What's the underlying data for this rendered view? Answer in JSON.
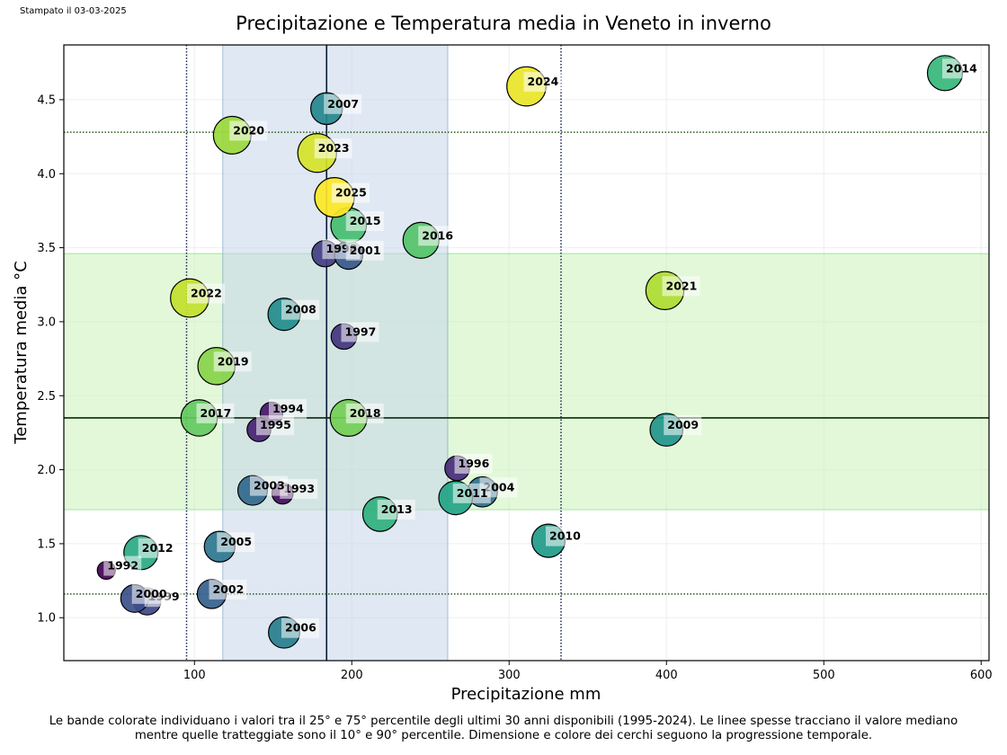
{
  "printed_date": "Stampato il 03-03-2025",
  "caption_lines": [
    "Le bande colorate individuano i valori tra il 25° e 75° percentile degli ultimi 30 anni disponibili (1995-2024). Le linee spesse tracciano il valore mediano",
    "mentre quelle tratteggiate sono il 10° e 90° percentile. Dimensione e colore dei cerchi seguono la progressione temporale."
  ],
  "chart_data": {
    "type": "scatter",
    "title": "Precipitazione e Temperatura media in Veneto in inverno",
    "xlabel": "Precipitazione mm",
    "ylabel": "Temperatura media °C",
    "xlim": [
      17,
      605
    ],
    "ylim": [
      0.71,
      4.87
    ],
    "xticks": [
      100,
      200,
      300,
      400,
      500,
      600
    ],
    "yticks": [
      1.0,
      1.5,
      2.0,
      2.5,
      3.0,
      3.5,
      4.0,
      4.5
    ],
    "grid": true,
    "colormap": "viridis",
    "reference": {
      "precip_band_p25_p75": [
        118,
        261
      ],
      "precip_median": 184,
      "precip_p10": 95,
      "precip_p90": 333,
      "temp_band_p25_p75": [
        1.73,
        3.46
      ],
      "temp_median": 2.35,
      "temp_p10": 1.16,
      "temp_p90": 4.28,
      "precip_band_color": "#c4d6ea",
      "temp_band_color": "#c8f2b4",
      "temp_band_edge": "#6fd66a",
      "precip_band_edge": "#5a8bb8"
    },
    "points": [
      {
        "year": "1992",
        "x": 44,
        "y": 1.32
      },
      {
        "year": "1993",
        "x": 156,
        "y": 1.84
      },
      {
        "year": "1994",
        "x": 149,
        "y": 2.38
      },
      {
        "year": "1995",
        "x": 141,
        "y": 2.27
      },
      {
        "year": "1996",
        "x": 267,
        "y": 2.01
      },
      {
        "year": "1997",
        "x": 195,
        "y": 2.9
      },
      {
        "year": "1998",
        "x": 183,
        "y": 3.46
      },
      {
        "year": "1999",
        "x": 70,
        "y": 1.11
      },
      {
        "year": "2000",
        "x": 62,
        "y": 1.13
      },
      {
        "year": "2001",
        "x": 198,
        "y": 3.45
      },
      {
        "year": "2002",
        "x": 111,
        "y": 1.16
      },
      {
        "year": "2003",
        "x": 137,
        "y": 1.86
      },
      {
        "year": "2004",
        "x": 283,
        "y": 1.85
      },
      {
        "year": "2005",
        "x": 116,
        "y": 1.48
      },
      {
        "year": "2006",
        "x": 157,
        "y": 0.9
      },
      {
        "year": "2007",
        "x": 184,
        "y": 4.44
      },
      {
        "year": "2008",
        "x": 157,
        "y": 3.05
      },
      {
        "year": "2009",
        "x": 400,
        "y": 2.27
      },
      {
        "year": "2010",
        "x": 325,
        "y": 1.52
      },
      {
        "year": "2011",
        "x": 266,
        "y": 1.81
      },
      {
        "year": "2012",
        "x": 66,
        "y": 1.44
      },
      {
        "year": "2013",
        "x": 218,
        "y": 1.7
      },
      {
        "year": "2014",
        "x": 577,
        "y": 4.68
      },
      {
        "year": "2015",
        "x": 198,
        "y": 3.65
      },
      {
        "year": "2016",
        "x": 244,
        "y": 3.55
      },
      {
        "year": "2017",
        "x": 103,
        "y": 2.35
      },
      {
        "year": "2018",
        "x": 198,
        "y": 2.35
      },
      {
        "year": "2019",
        "x": 114,
        "y": 2.7
      },
      {
        "year": "2020",
        "x": 124,
        "y": 4.26
      },
      {
        "year": "2021",
        "x": 399,
        "y": 3.21
      },
      {
        "year": "2022",
        "x": 97,
        "y": 3.16
      },
      {
        "year": "2023",
        "x": 178,
        "y": 4.14
      },
      {
        "year": "2024",
        "x": 311,
        "y": 4.59
      },
      {
        "year": "2025",
        "x": 189,
        "y": 3.84
      }
    ]
  }
}
